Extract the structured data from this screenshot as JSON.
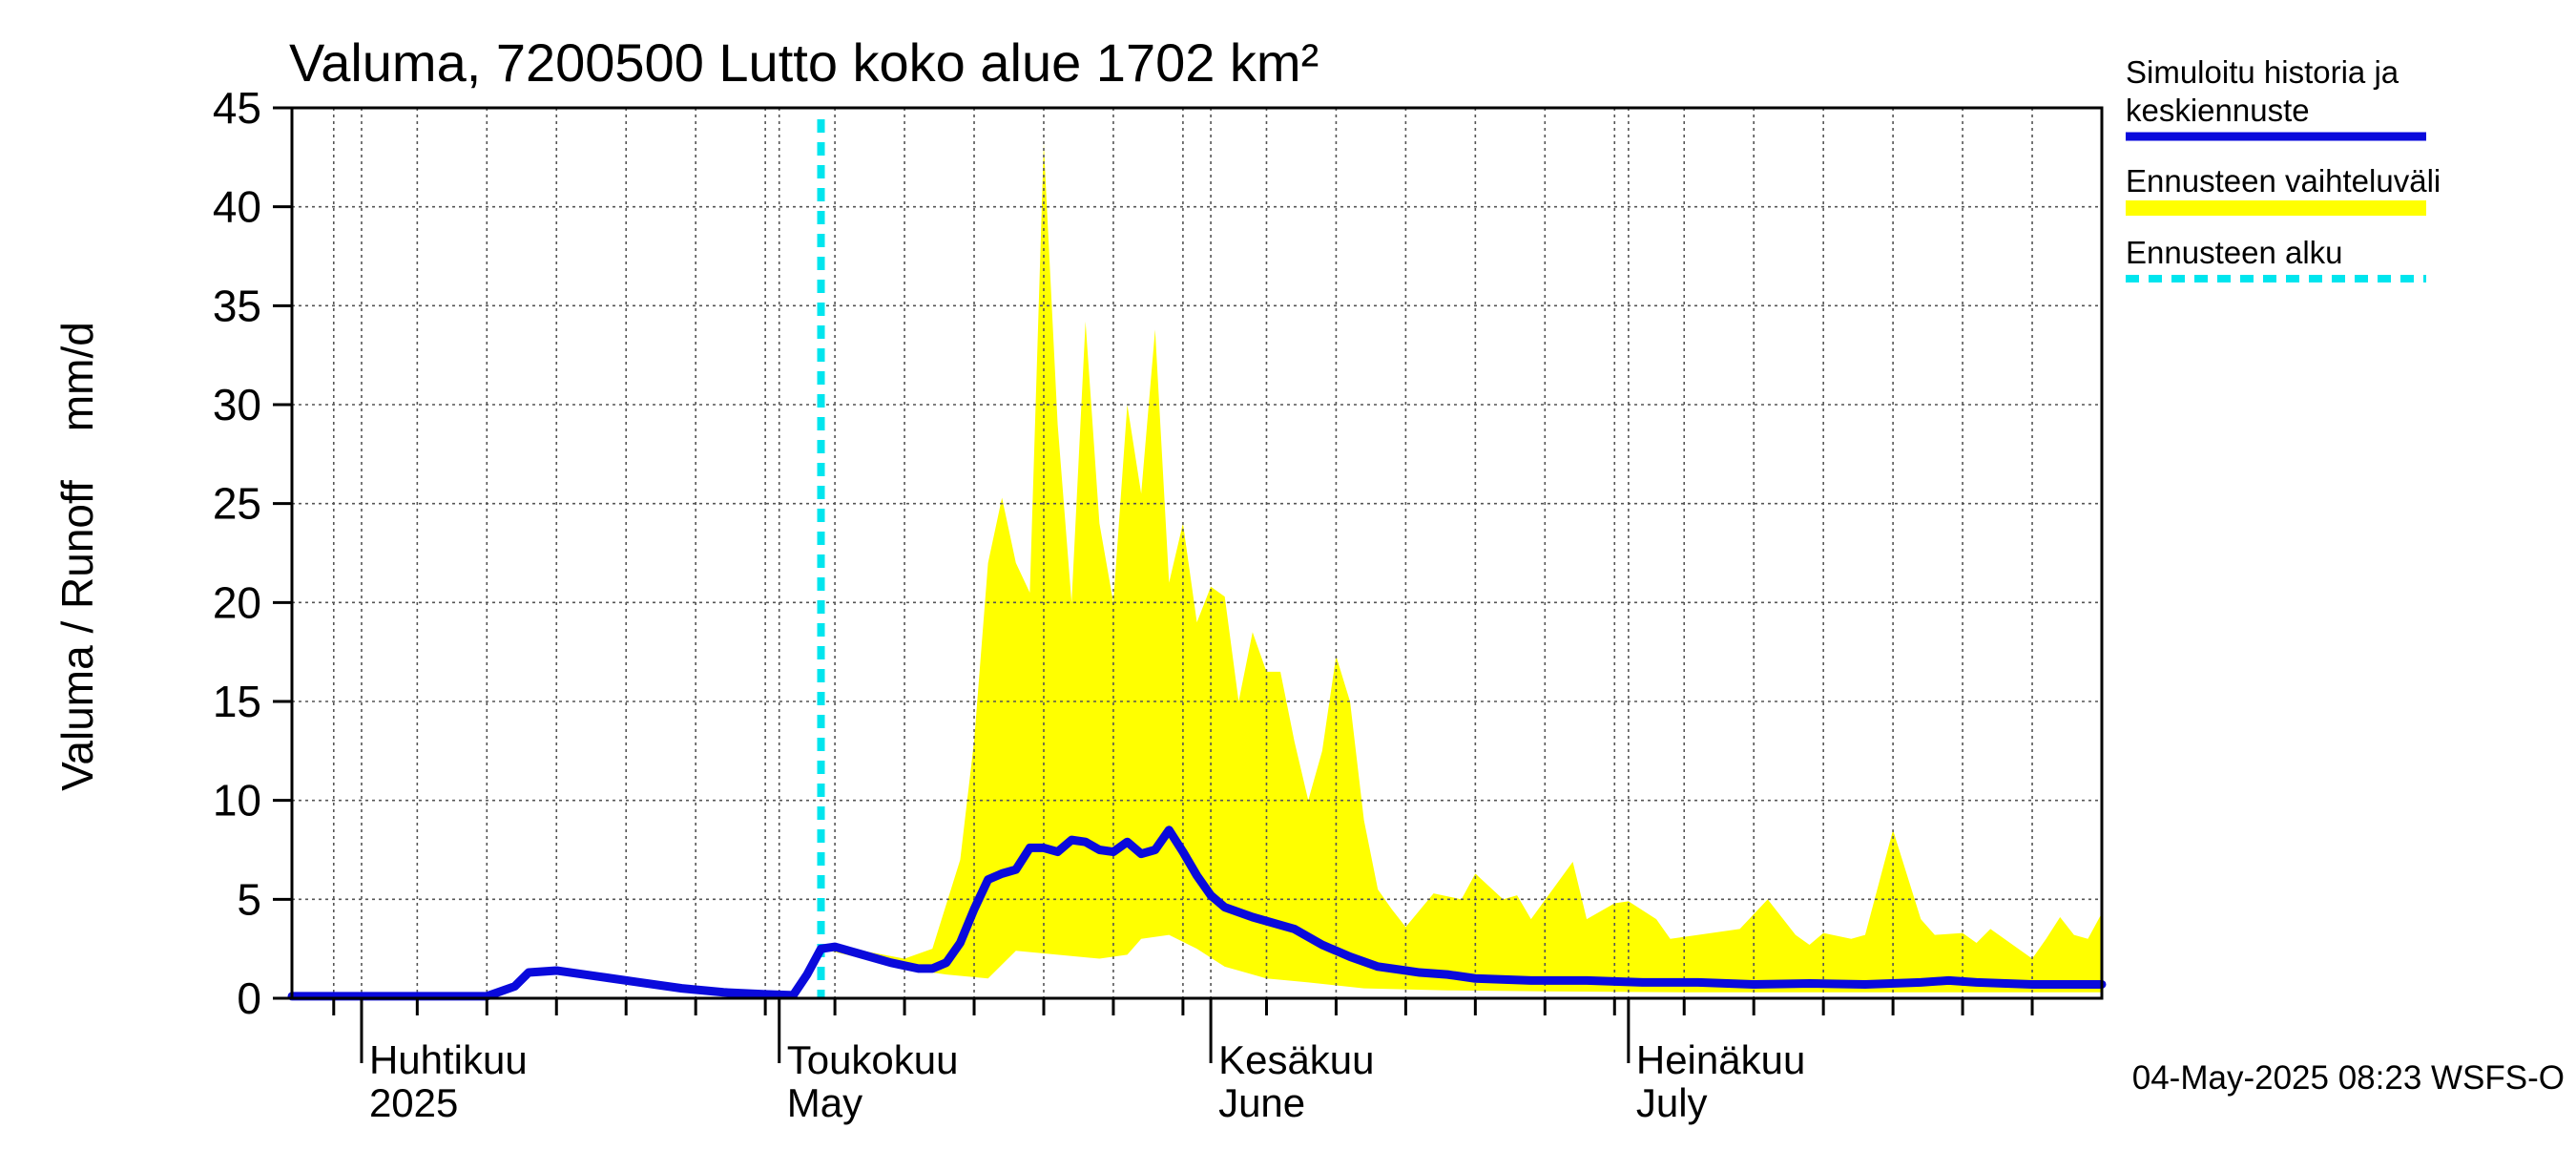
{
  "chart_data": {
    "type": "area",
    "title": "Valuma, 7200500 Lutto koko alue 1702 km²",
    "ylabel": "Valuma / Runoff    mm/d",
    "ylim": [
      0,
      45
    ],
    "yticks": [
      0,
      5,
      10,
      15,
      20,
      25,
      30,
      35,
      40,
      45
    ],
    "xlim": [
      "2025-03-27",
      "2025-08-04"
    ],
    "grid": true,
    "legend_position": "right",
    "month_labels": [
      {
        "date": "2025-04-01",
        "fi": "Huhtikuu",
        "en": "2025"
      },
      {
        "date": "2025-05-01",
        "fi": "Toukokuu",
        "en": "May"
      },
      {
        "date": "2025-06-01",
        "fi": "Kesäkuu",
        "en": "June"
      },
      {
        "date": "2025-07-01",
        "fi": "Heinäkuu",
        "en": "July"
      }
    ],
    "forecast_start": "2025-05-04",
    "timestamp": "04-May-2025 08:23 WSFS-O",
    "colors": {
      "simulated": "#0a0adc",
      "range": "#ffff00",
      "forecast_start": "#00e5ee",
      "grid": "#555555",
      "axis": "#000000"
    },
    "series": [
      {
        "name": "Simuloitu historia ja keskiennuste",
        "role": "line",
        "points": [
          [
            "2025-03-27",
            0.1
          ],
          [
            "2025-04-10",
            0.1
          ],
          [
            "2025-04-12",
            0.6
          ],
          [
            "2025-04-13",
            1.3
          ],
          [
            "2025-04-15",
            1.4
          ],
          [
            "2025-04-18",
            1.1
          ],
          [
            "2025-04-21",
            0.8
          ],
          [
            "2025-04-24",
            0.5
          ],
          [
            "2025-04-27",
            0.3
          ],
          [
            "2025-04-30",
            0.2
          ],
          [
            "2025-05-02",
            0.15
          ],
          [
            "2025-05-03",
            1.2
          ],
          [
            "2025-05-04",
            2.5
          ],
          [
            "2025-05-05",
            2.6
          ],
          [
            "2025-05-07",
            2.2
          ],
          [
            "2025-05-09",
            1.8
          ],
          [
            "2025-05-11",
            1.5
          ],
          [
            "2025-05-12",
            1.5
          ],
          [
            "2025-05-13",
            1.8
          ],
          [
            "2025-05-14",
            2.8
          ],
          [
            "2025-05-15",
            4.5
          ],
          [
            "2025-05-16",
            6.0
          ],
          [
            "2025-05-17",
            6.3
          ],
          [
            "2025-05-18",
            6.5
          ],
          [
            "2025-05-19",
            7.6
          ],
          [
            "2025-05-20",
            7.6
          ],
          [
            "2025-05-21",
            7.4
          ],
          [
            "2025-05-22",
            8.0
          ],
          [
            "2025-05-23",
            7.9
          ],
          [
            "2025-05-24",
            7.5
          ],
          [
            "2025-05-25",
            7.4
          ],
          [
            "2025-05-26",
            7.9
          ],
          [
            "2025-05-27",
            7.3
          ],
          [
            "2025-05-28",
            7.5
          ],
          [
            "2025-05-29",
            8.5
          ],
          [
            "2025-05-30",
            7.4
          ],
          [
            "2025-05-31",
            6.2
          ],
          [
            "2025-06-01",
            5.2
          ],
          [
            "2025-06-02",
            4.6
          ],
          [
            "2025-06-04",
            4.1
          ],
          [
            "2025-06-07",
            3.5
          ],
          [
            "2025-06-09",
            2.7
          ],
          [
            "2025-06-11",
            2.1
          ],
          [
            "2025-06-13",
            1.6
          ],
          [
            "2025-06-15",
            1.4
          ],
          [
            "2025-06-16",
            1.3
          ],
          [
            "2025-06-18",
            1.2
          ],
          [
            "2025-06-20",
            1.0
          ],
          [
            "2025-06-24",
            0.9
          ],
          [
            "2025-06-28",
            0.9
          ],
          [
            "2025-07-02",
            0.8
          ],
          [
            "2025-07-06",
            0.8
          ],
          [
            "2025-07-10",
            0.7
          ],
          [
            "2025-07-14",
            0.75
          ],
          [
            "2025-07-18",
            0.7
          ],
          [
            "2025-07-22",
            0.8
          ],
          [
            "2025-07-24",
            0.9
          ],
          [
            "2025-07-26",
            0.8
          ],
          [
            "2025-07-30",
            0.7
          ],
          [
            "2025-08-04",
            0.7
          ]
        ]
      },
      {
        "name": "Ennusteen vaihteluväli",
        "role": "band",
        "upper": [
          [
            "2025-05-04",
            2.6
          ],
          [
            "2025-05-07",
            2.4
          ],
          [
            "2025-05-10",
            2.0
          ],
          [
            "2025-05-12",
            2.5
          ],
          [
            "2025-05-14",
            7.0
          ],
          [
            "2025-05-15",
            13.0
          ],
          [
            "2025-05-16",
            22.0
          ],
          [
            "2025-05-17",
            25.3
          ],
          [
            "2025-05-18",
            22.0
          ],
          [
            "2025-05-19",
            20.5
          ],
          [
            "2025-05-20",
            43.2
          ],
          [
            "2025-05-21",
            29.0
          ],
          [
            "2025-05-22",
            20.0
          ],
          [
            "2025-05-23",
            34.2
          ],
          [
            "2025-05-24",
            24.0
          ],
          [
            "2025-05-25",
            20.0
          ],
          [
            "2025-05-26",
            30.0
          ],
          [
            "2025-05-27",
            25.5
          ],
          [
            "2025-05-28",
            33.8
          ],
          [
            "2025-05-29",
            21.0
          ],
          [
            "2025-05-30",
            24.0
          ],
          [
            "2025-05-31",
            19.0
          ],
          [
            "2025-06-01",
            20.8
          ],
          [
            "2025-06-02",
            20.3
          ],
          [
            "2025-06-03",
            15.0
          ],
          [
            "2025-06-04",
            18.5
          ],
          [
            "2025-06-05",
            16.5
          ],
          [
            "2025-06-06",
            16.5
          ],
          [
            "2025-06-07",
            13.0
          ],
          [
            "2025-06-08",
            10.0
          ],
          [
            "2025-06-09",
            12.5
          ],
          [
            "2025-06-10",
            17.3
          ],
          [
            "2025-06-11",
            15.0
          ],
          [
            "2025-06-12",
            9.0
          ],
          [
            "2025-06-13",
            5.5
          ],
          [
            "2025-06-14",
            4.5
          ],
          [
            "2025-06-15",
            3.6
          ],
          [
            "2025-06-17",
            5.3
          ],
          [
            "2025-06-19",
            5.0
          ],
          [
            "2025-06-20",
            6.3
          ],
          [
            "2025-06-22",
            5.0
          ],
          [
            "2025-06-23",
            5.2
          ],
          [
            "2025-06-24",
            4.0
          ],
          [
            "2025-06-27",
            6.9
          ],
          [
            "2025-06-28",
            4.0
          ],
          [
            "2025-06-30",
            4.8
          ],
          [
            "2025-07-01",
            4.9
          ],
          [
            "2025-07-03",
            4.0
          ],
          [
            "2025-07-04",
            3.0
          ],
          [
            "2025-07-06",
            3.2
          ],
          [
            "2025-07-09",
            3.5
          ],
          [
            "2025-07-11",
            5.0
          ],
          [
            "2025-07-13",
            3.2
          ],
          [
            "2025-07-14",
            2.7
          ],
          [
            "2025-07-15",
            3.3
          ],
          [
            "2025-07-17",
            3.0
          ],
          [
            "2025-07-18",
            3.2
          ],
          [
            "2025-07-20",
            8.5
          ],
          [
            "2025-07-22",
            4.0
          ],
          [
            "2025-07-23",
            3.2
          ],
          [
            "2025-07-25",
            3.3
          ],
          [
            "2025-07-26",
            2.8
          ],
          [
            "2025-07-27",
            3.5
          ],
          [
            "2025-07-28",
            3.0
          ],
          [
            "2025-07-30",
            2.0
          ],
          [
            "2025-07-31",
            3.0
          ],
          [
            "2025-08-01",
            4.1
          ],
          [
            "2025-08-02",
            3.2
          ],
          [
            "2025-08-03",
            3.0
          ],
          [
            "2025-08-04",
            4.3
          ]
        ],
        "lower": [
          [
            "2025-05-04",
            2.5
          ],
          [
            "2025-05-07",
            2.0
          ],
          [
            "2025-05-10",
            1.5
          ],
          [
            "2025-05-13",
            1.2
          ],
          [
            "2025-05-16",
            1.0
          ],
          [
            "2025-05-18",
            2.4
          ],
          [
            "2025-05-21",
            2.2
          ],
          [
            "2025-05-24",
            2.0
          ],
          [
            "2025-05-26",
            2.2
          ],
          [
            "2025-05-27",
            3.0
          ],
          [
            "2025-05-29",
            3.2
          ],
          [
            "2025-05-31",
            2.5
          ],
          [
            "2025-06-02",
            1.6
          ],
          [
            "2025-06-05",
            1.0
          ],
          [
            "2025-06-08",
            0.8
          ],
          [
            "2025-06-12",
            0.5
          ],
          [
            "2025-06-18",
            0.4
          ],
          [
            "2025-06-25",
            0.35
          ],
          [
            "2025-07-05",
            0.3
          ],
          [
            "2025-07-20",
            0.3
          ],
          [
            "2025-08-04",
            0.3
          ]
        ]
      }
    ],
    "legend": [
      {
        "label": "Simuloitu historia ja keskiennuste",
        "style": "solid",
        "color": "#0a0adc"
      },
      {
        "label": "Ennusteen vaihteluväli",
        "style": "solid",
        "color": "#ffff00"
      },
      {
        "label": "Ennusteen alku",
        "style": "dashed",
        "color": "#00e5ee"
      }
    ]
  }
}
